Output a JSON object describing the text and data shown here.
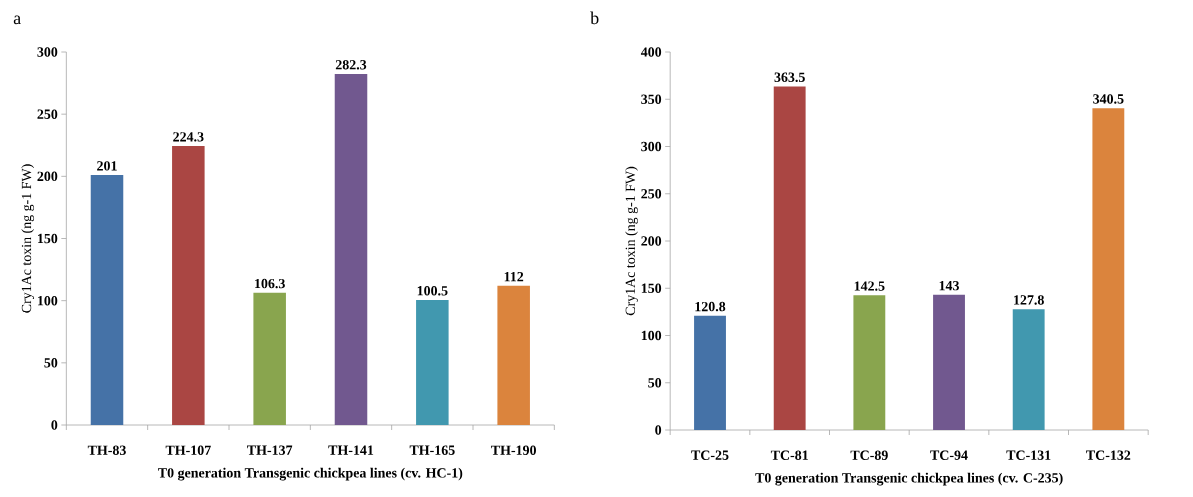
{
  "chart_data": [
    {
      "type": "bar",
      "title": "a",
      "xlabel": "T0  generation Transgenic chickpea lines (cv. HC-1)",
      "ylabel": "Cry1Ac toxin (ng g-1 FW)",
      "categories": [
        "TH-83",
        "TH-107",
        "TH-137",
        "TH-141",
        "TH-165",
        "TH-190"
      ],
      "values": [
        201,
        224.3,
        106.3,
        282.3,
        100.5,
        112
      ],
      "colors": [
        "#4572a7",
        "#aa4643",
        "#89a54e",
        "#71588f",
        "#4198af",
        "#db843d"
      ],
      "ylim": [
        0,
        300
      ],
      "yticks": [
        0,
        50,
        100,
        150,
        200,
        250,
        300
      ],
      "data_labels": true
    },
    {
      "type": "bar",
      "title": "b",
      "xlabel": "T0  generation Transgenic chickpea lines (cv. C-235)",
      "ylabel": "Cry1Ac toxin (ng g-1 FW)",
      "categories": [
        "TC-25",
        "TC-81",
        "TC-89",
        "TC-94",
        "TC-131",
        "TC-132"
      ],
      "values": [
        120.8,
        363.5,
        142.5,
        143,
        127.8,
        340.5
      ],
      "colors": [
        "#4572a7",
        "#aa4643",
        "#89a54e",
        "#71588f",
        "#4198af",
        "#db843d"
      ],
      "ylim": [
        0,
        400
      ],
      "yticks": [
        0,
        50,
        100,
        150,
        200,
        250,
        300,
        350,
        400
      ],
      "data_labels": true
    }
  ]
}
